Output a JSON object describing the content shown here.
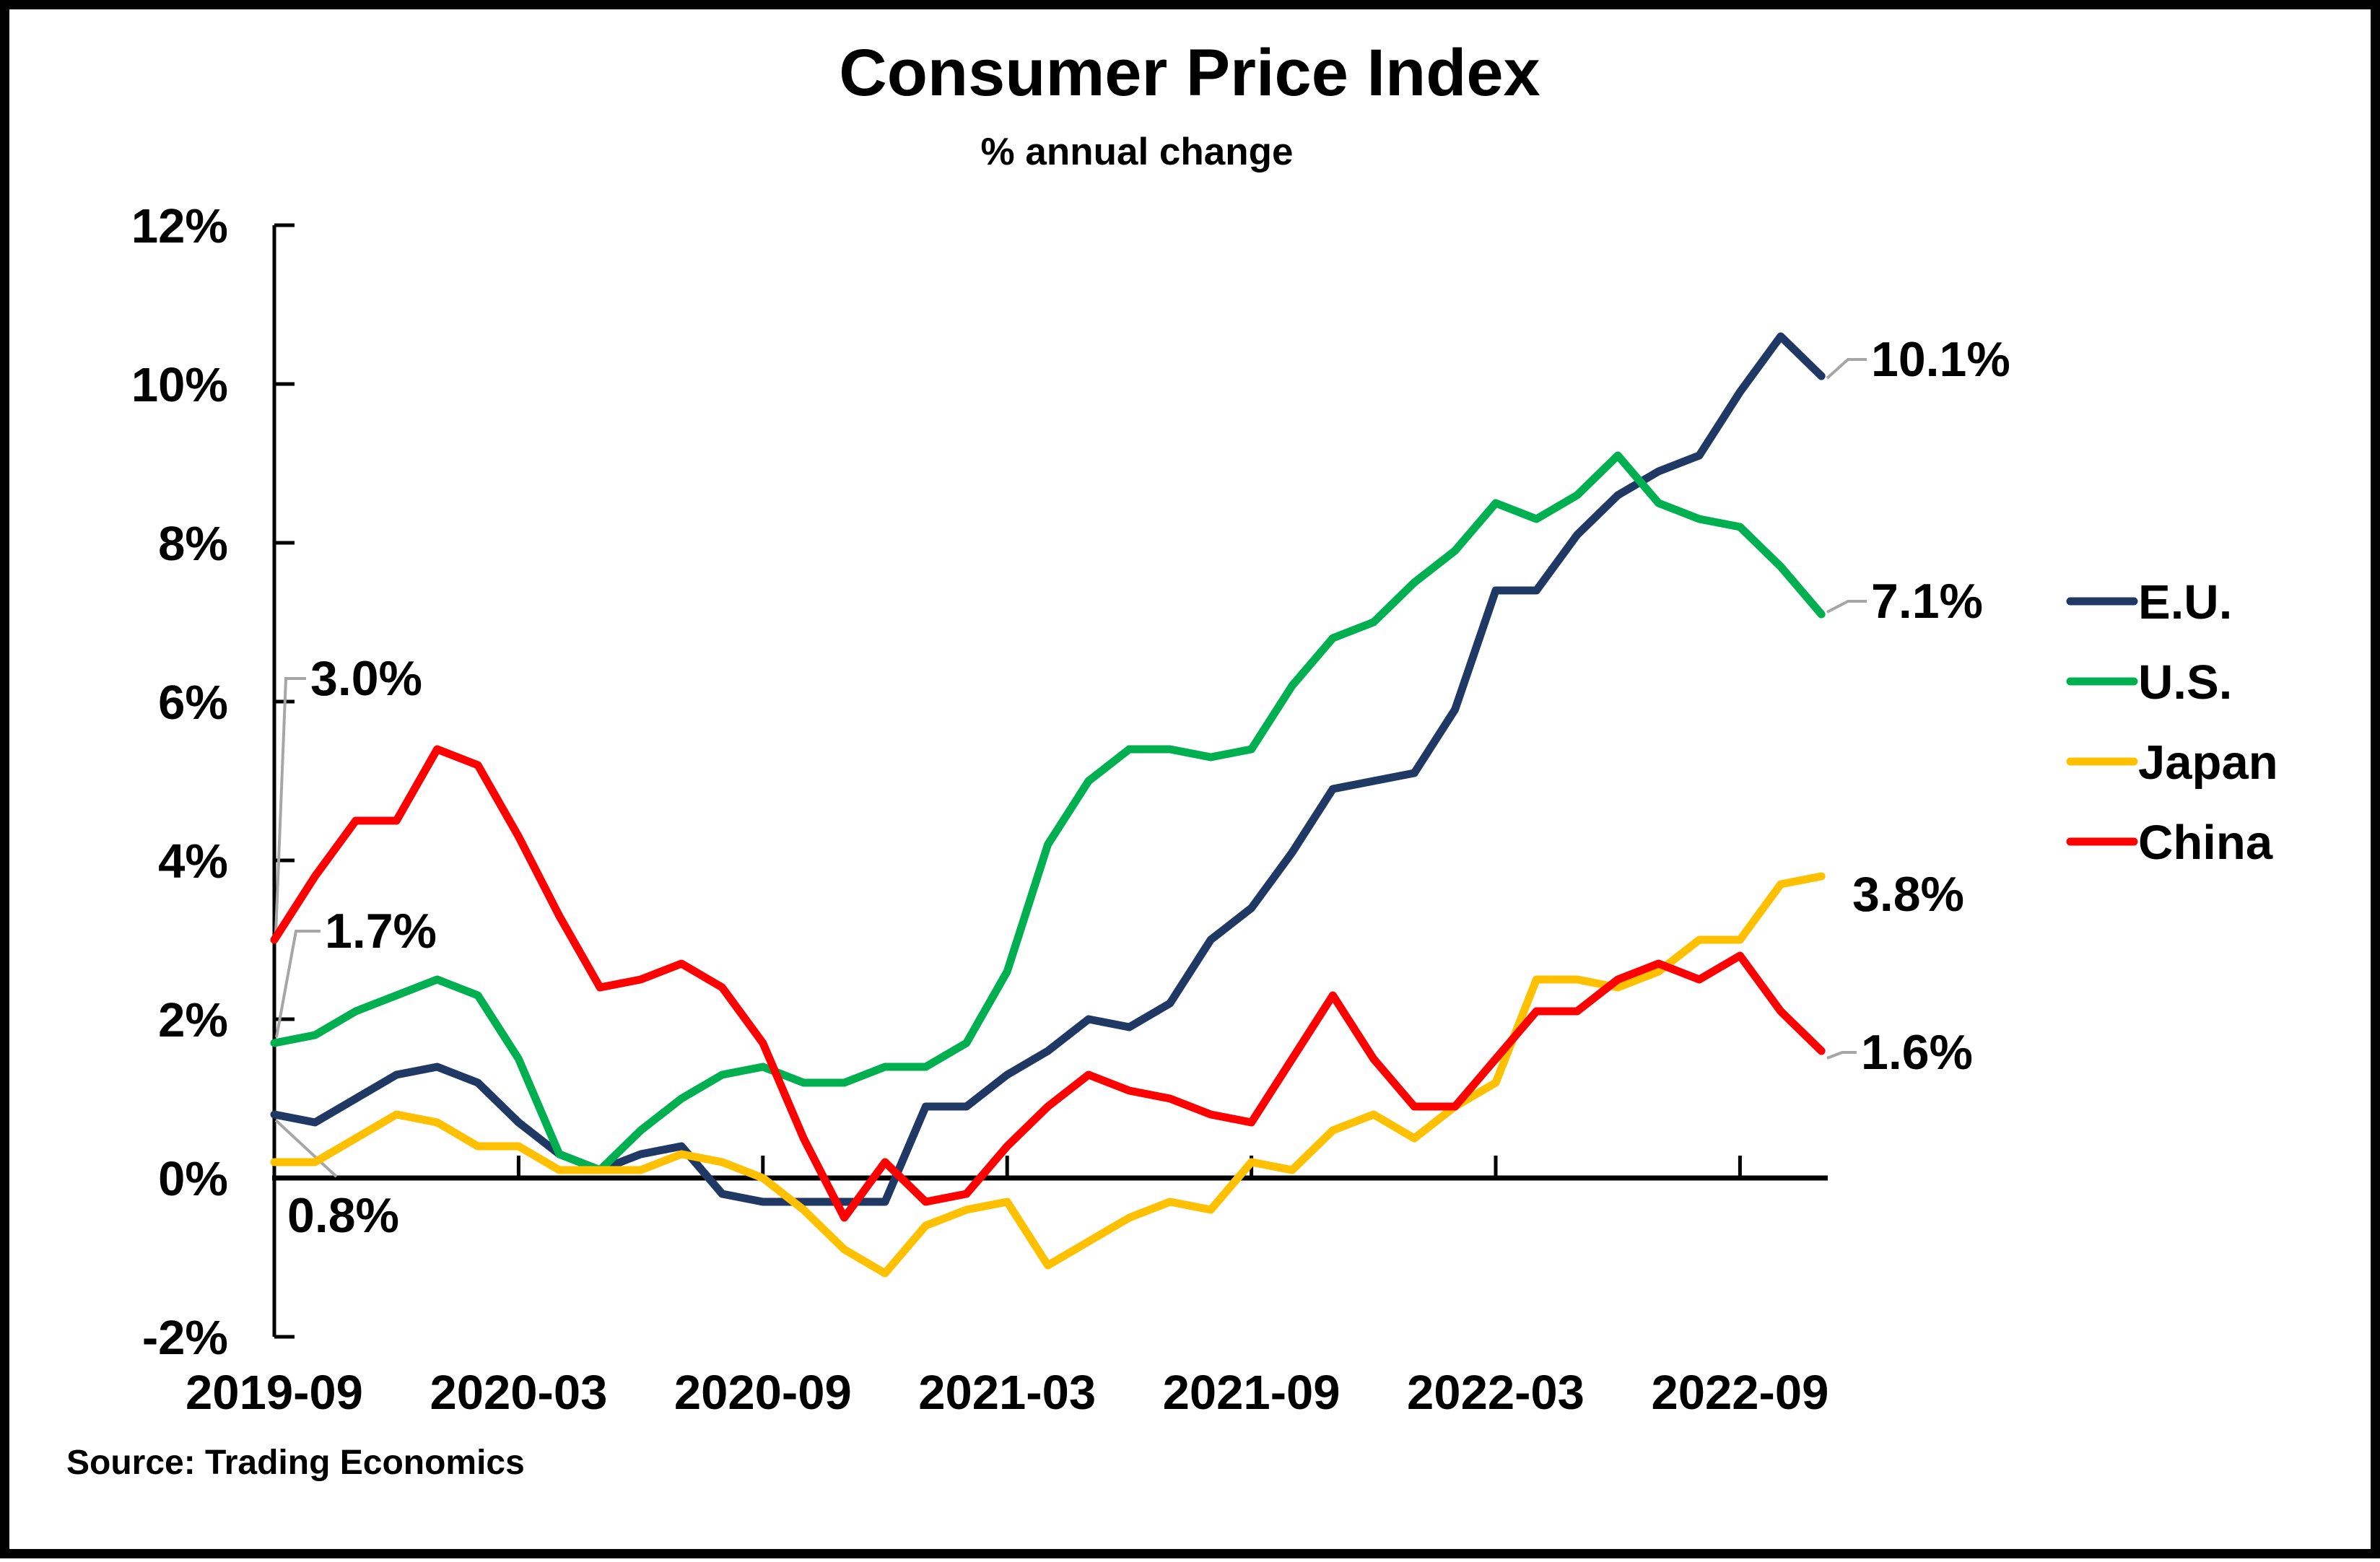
{
  "title": "Consumer Price Index",
  "subtitle": "% annual change",
  "source": "Source: Trading Economics",
  "colors": {
    "eu": "#1F3864",
    "us": "#00B050",
    "japan": "#FFC000",
    "china": "#FF0000",
    "leader": "#A6A6A6",
    "axis": "#000000",
    "background": "#FFFFFF",
    "border": "#000000"
  },
  "chart_data": {
    "type": "line",
    "x": [
      "2019-09",
      "2019-10",
      "2019-11",
      "2019-12",
      "2020-01",
      "2020-02",
      "2020-03",
      "2020-04",
      "2020-05",
      "2020-06",
      "2020-07",
      "2020-08",
      "2020-09",
      "2020-10",
      "2020-11",
      "2020-12",
      "2021-01",
      "2021-02",
      "2021-03",
      "2021-04",
      "2021-05",
      "2021-06",
      "2021-07",
      "2021-08",
      "2021-09",
      "2021-10",
      "2021-11",
      "2021-12",
      "2022-01",
      "2022-02",
      "2022-03",
      "2022-04",
      "2022-05",
      "2022-06",
      "2022-07",
      "2022-08",
      "2022-09",
      "2022-10",
      "2022-11"
    ],
    "x_tick_labels": [
      "2019-09",
      "2020-03",
      "2020-09",
      "2021-03",
      "2021-09",
      "2022-03",
      "2022-09"
    ],
    "x_tick_months": [
      0,
      6,
      12,
      18,
      24,
      30,
      36
    ],
    "ylim": [
      -2,
      12
    ],
    "y_tick_values": [
      -2,
      0,
      2,
      4,
      6,
      8,
      10,
      12
    ],
    "y_tick_labels": [
      "-2%",
      "0%",
      "2%",
      "4%",
      "6%",
      "8%",
      "10%",
      "12%"
    ],
    "grid": false,
    "legend_position": "right",
    "series": [
      {
        "name": "E.U.",
        "color": "#1F3864",
        "values": [
          0.8,
          0.7,
          1.0,
          1.3,
          1.4,
          1.2,
          0.7,
          0.3,
          0.1,
          0.3,
          0.4,
          -0.2,
          -0.3,
          -0.3,
          -0.3,
          -0.3,
          0.9,
          0.9,
          1.3,
          1.6,
          2.0,
          1.9,
          2.2,
          3.0,
          3.4,
          4.1,
          4.9,
          5.0,
          5.1,
          5.9,
          7.4,
          7.4,
          8.1,
          8.6,
          8.9,
          9.1,
          9.9,
          10.6,
          10.1
        ]
      },
      {
        "name": "U.S.",
        "color": "#00B050",
        "values": [
          1.7,
          1.8,
          2.1,
          2.3,
          2.5,
          2.3,
          1.5,
          0.3,
          0.1,
          0.6,
          1.0,
          1.3,
          1.4,
          1.2,
          1.2,
          1.4,
          1.4,
          1.7,
          2.6,
          4.2,
          5.0,
          5.4,
          5.4,
          5.3,
          5.4,
          6.2,
          6.8,
          7.0,
          7.5,
          7.9,
          8.5,
          8.3,
          8.6,
          9.1,
          8.5,
          8.3,
          8.2,
          7.7,
          7.1
        ]
      },
      {
        "name": "Japan",
        "color": "#FFC000",
        "values": [
          0.2,
          0.2,
          0.5,
          0.8,
          0.7,
          0.4,
          0.4,
          0.1,
          0.1,
          0.1,
          0.3,
          0.2,
          0.0,
          -0.4,
          -0.9,
          -1.2,
          -0.6,
          -0.4,
          -0.3,
          -1.1,
          -0.8,
          -0.5,
          -0.3,
          -0.4,
          0.2,
          0.1,
          0.6,
          0.8,
          0.5,
          0.9,
          1.2,
          2.5,
          2.5,
          2.4,
          2.6,
          3.0,
          3.0,
          3.7,
          3.8
        ]
      },
      {
        "name": "China",
        "color": "#FF0000",
        "values": [
          3.0,
          3.8,
          4.5,
          4.5,
          5.4,
          5.2,
          4.3,
          3.3,
          2.4,
          2.5,
          2.7,
          2.4,
          1.7,
          0.5,
          -0.5,
          0.2,
          -0.3,
          -0.2,
          0.4,
          0.9,
          1.3,
          1.1,
          1.0,
          0.8,
          0.7,
          1.5,
          2.3,
          1.5,
          0.9,
          0.9,
          1.5,
          2.1,
          2.1,
          2.5,
          2.7,
          2.5,
          2.8,
          2.1,
          1.6
        ]
      }
    ],
    "annotations": [
      {
        "text": "3.0%",
        "series": "China",
        "position": "start"
      },
      {
        "text": "1.7%",
        "series": "U.S.",
        "position": "start"
      },
      {
        "text": "0.8%",
        "series": "E.U.",
        "position": "start"
      },
      {
        "text": "10.1%",
        "series": "E.U.",
        "position": "end"
      },
      {
        "text": "7.1%",
        "series": "U.S.",
        "position": "end"
      },
      {
        "text": "3.8%",
        "series": "Japan",
        "position": "end"
      },
      {
        "text": "1.6%",
        "series": "China",
        "position": "end"
      }
    ]
  }
}
